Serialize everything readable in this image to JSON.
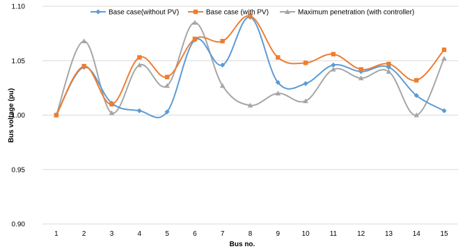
{
  "chart_data": {
    "type": "line",
    "xlabel": "Bus no.",
    "ylabel": "Bus voltage (pu)",
    "x": [
      "1",
      "2",
      "3",
      "4",
      "5",
      "6",
      "7",
      "8",
      "9",
      "10",
      "11",
      "12",
      "13",
      "14",
      "15"
    ],
    "ylim": [
      0.9,
      1.1
    ],
    "yticks": [
      "0.90",
      "0.95",
      "1.00",
      "1.05",
      "1.10"
    ],
    "grid": true,
    "legend_position": "top",
    "series": [
      {
        "name": "Base case(without PV)",
        "color": "#5b9bd5",
        "marker": "diamond",
        "values": [
          1.0,
          1.044,
          1.011,
          1.004,
          1.003,
          1.069,
          1.046,
          1.09,
          1.03,
          1.029,
          1.046,
          1.04,
          1.044,
          1.018,
          1.004
        ]
      },
      {
        "name": "Base case (with PV)",
        "color": "#ed7d31",
        "marker": "square",
        "values": [
          1.0,
          1.045,
          1.01,
          1.053,
          1.035,
          1.07,
          1.068,
          1.091,
          1.053,
          1.048,
          1.056,
          1.042,
          1.047,
          1.032,
          1.06
        ]
      },
      {
        "name": "Maximum penetration (with controller)",
        "color": "#a5a5a5",
        "marker": "triangle",
        "values": [
          1.0,
          1.068,
          1.002,
          1.046,
          1.027,
          1.085,
          1.027,
          1.009,
          1.02,
          1.013,
          1.042,
          1.034,
          1.04,
          1.0,
          1.052
        ]
      }
    ]
  }
}
